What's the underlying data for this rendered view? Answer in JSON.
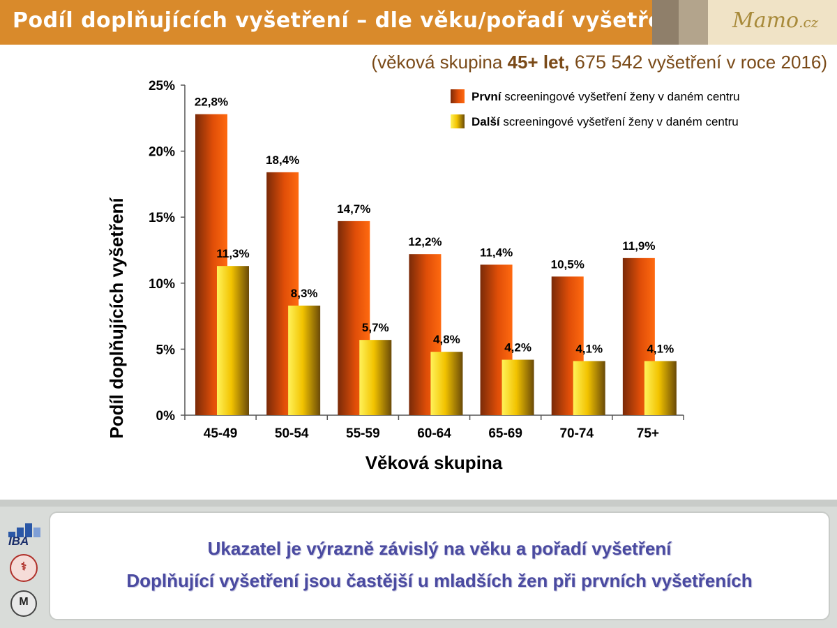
{
  "header": {
    "title": "Podíl doplňujících vyšetření – dle věku/pořadí vyšetření",
    "logo_text": "Mamo",
    "logo_suffix": ".cz"
  },
  "subtitle": {
    "prefix": "(věková skupina ",
    "group": "45+ let,",
    "count": " 675 542",
    "suffix": " vyšetření v roce 2016)"
  },
  "colors": {
    "first_series": "#ff5a00",
    "second_series": "#f2c300",
    "header_bg": "#d98a2b",
    "summary_text": "#4a4aa0"
  },
  "chart_data": {
    "type": "bar",
    "categories": [
      "45-49",
      "50-54",
      "55-59",
      "60-64",
      "65-69",
      "70-74",
      "75+"
    ],
    "series": [
      {
        "name_bold": "První",
        "name_rest": " screeningové vyšetření ženy v daném centru",
        "values": [
          22.8,
          18.4,
          14.7,
          12.2,
          11.4,
          10.5,
          11.9
        ],
        "labels": [
          "22,8%",
          "18,4%",
          "14,7%",
          "12,2%",
          "11,4%",
          "10,5%",
          "11,9%"
        ]
      },
      {
        "name_bold": "Další",
        "name_rest": " screeningové vyšetření ženy v daném centru",
        "values": [
          11.3,
          8.3,
          5.7,
          4.8,
          4.2,
          4.1,
          4.1
        ],
        "labels": [
          "11,3%",
          "8,3%",
          "5,7%",
          "4,8%",
          "4,2%",
          "4,1%",
          "4,1%"
        ]
      }
    ],
    "xlabel": "Věková skupina",
    "ylabel": "Podíl doplňujících vyšetření",
    "ylim": [
      0,
      25
    ],
    "yticks": [
      0,
      5,
      10,
      15,
      20,
      25
    ],
    "ytick_labels": [
      "0%",
      "5%",
      "10%",
      "15%",
      "20%",
      "25%"
    ],
    "grid": false,
    "legend_position": "top-right"
  },
  "summary": {
    "line1": "Ukazatel je výrazně závislý na věku a pořadí vyšetření",
    "line2": "Doplňující vyšetření jsou častější u mladších žen při prvních vyšetřeních"
  },
  "side_logos": {
    "iba": "IBA",
    "emblem_icon": "medical-faculty-emblem-icon",
    "university_icon": "university-seal-icon"
  }
}
